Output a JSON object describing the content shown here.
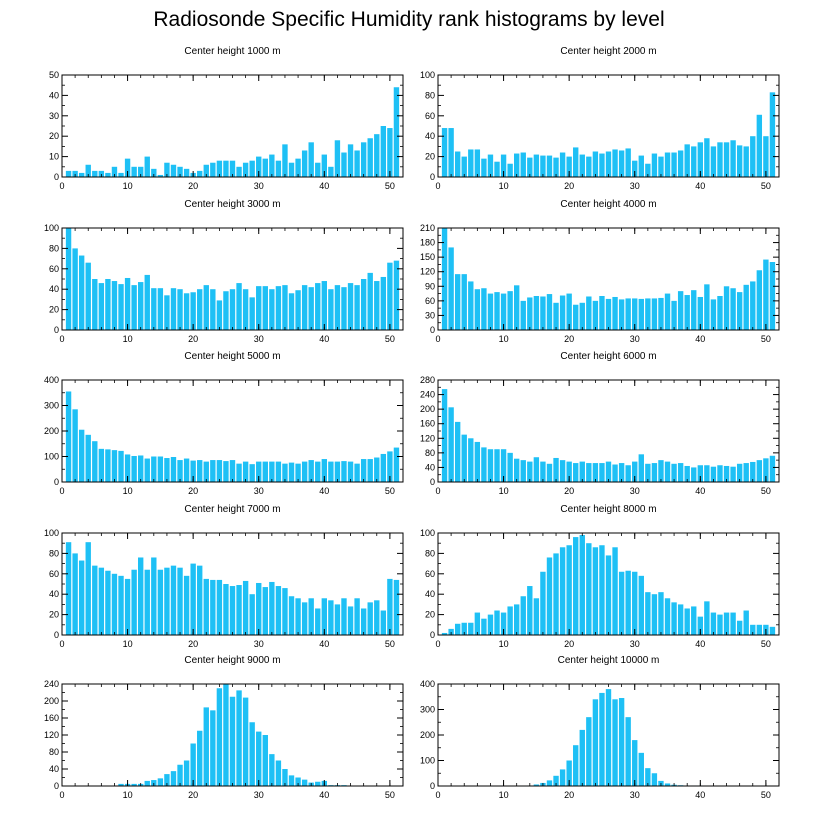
{
  "title": "Radiosonde Specific Humidity rank histograms by level",
  "colors": {
    "bar": "#1ec0f5",
    "axis": "#000000"
  },
  "chart_data": [
    {
      "type": "bar",
      "title": "Center height 1000 m",
      "xlim": [
        0,
        52
      ],
      "ylim": [
        0,
        50
      ],
      "xticks": [
        0,
        10,
        20,
        30,
        40,
        50
      ],
      "yticks": [
        0,
        10,
        20,
        30,
        40,
        50
      ],
      "x": [
        1,
        2,
        3,
        4,
        5,
        6,
        7,
        8,
        9,
        10,
        11,
        12,
        13,
        14,
        15,
        16,
        17,
        18,
        19,
        20,
        21,
        22,
        23,
        24,
        25,
        26,
        27,
        28,
        29,
        30,
        31,
        32,
        33,
        34,
        35,
        36,
        37,
        38,
        39,
        40,
        41,
        42,
        43,
        44,
        45,
        46,
        47,
        48,
        49,
        50,
        51
      ],
      "values": [
        3,
        3,
        2,
        6,
        3,
        3,
        2,
        5,
        2,
        9,
        5,
        5,
        10,
        4,
        1,
        7,
        6,
        5,
        4,
        2,
        3,
        6,
        7,
        8,
        8,
        8,
        5,
        7,
        8,
        10,
        9,
        11,
        8,
        16,
        7,
        9,
        13,
        17,
        7,
        11,
        5,
        18,
        12,
        16,
        13,
        17,
        19,
        21,
        25,
        24,
        44
      ]
    },
    {
      "type": "bar",
      "title": "Center height 2000 m",
      "xlim": [
        0,
        52
      ],
      "ylim": [
        0,
        100
      ],
      "xticks": [
        0,
        10,
        20,
        30,
        40,
        50
      ],
      "yticks": [
        0,
        20,
        40,
        60,
        80,
        100
      ],
      "x": [
        1,
        2,
        3,
        4,
        5,
        6,
        7,
        8,
        9,
        10,
        11,
        12,
        13,
        14,
        15,
        16,
        17,
        18,
        19,
        20,
        21,
        22,
        23,
        24,
        25,
        26,
        27,
        28,
        29,
        30,
        31,
        32,
        33,
        34,
        35,
        36,
        37,
        38,
        39,
        40,
        41,
        42,
        43,
        44,
        45,
        46,
        47,
        48,
        49,
        50,
        51
      ],
      "values": [
        48,
        48,
        25,
        20,
        27,
        27,
        18,
        22,
        15,
        22,
        13,
        23,
        24,
        19,
        22,
        21,
        21,
        19,
        24,
        20,
        29,
        22,
        20,
        25,
        23,
        25,
        27,
        26,
        28,
        16,
        21,
        13,
        23,
        20,
        24,
        24,
        26,
        32,
        30,
        34,
        38,
        30,
        34,
        34,
        36,
        31,
        30,
        40,
        61,
        40,
        83
      ]
    },
    {
      "type": "bar",
      "title": "Center height 3000 m",
      "xlim": [
        0,
        52
      ],
      "ylim": [
        0,
        100
      ],
      "xticks": [
        0,
        10,
        20,
        30,
        40,
        50
      ],
      "yticks": [
        0,
        20,
        40,
        60,
        80,
        100
      ],
      "x": [
        1,
        2,
        3,
        4,
        5,
        6,
        7,
        8,
        9,
        10,
        11,
        12,
        13,
        14,
        15,
        16,
        17,
        18,
        19,
        20,
        21,
        22,
        23,
        24,
        25,
        26,
        27,
        28,
        29,
        30,
        31,
        32,
        33,
        34,
        35,
        36,
        37,
        38,
        39,
        40,
        41,
        42,
        43,
        44,
        45,
        46,
        47,
        48,
        49,
        50,
        51
      ],
      "values": [
        100,
        80,
        73,
        66,
        50,
        46,
        50,
        48,
        45,
        51,
        44,
        47,
        54,
        41,
        41,
        34,
        41,
        40,
        36,
        37,
        40,
        44,
        40,
        29,
        38,
        40,
        46,
        40,
        32,
        43,
        43,
        40,
        43,
        44,
        36,
        39,
        44,
        42,
        46,
        48,
        40,
        44,
        42,
        46,
        44,
        50,
        56,
        48,
        52,
        66,
        68
      ]
    },
    {
      "type": "bar",
      "title": "Center height 4000 m",
      "xlim": [
        0,
        52
      ],
      "ylim": [
        0,
        210
      ],
      "xticks": [
        0,
        10,
        20,
        30,
        40,
        50
      ],
      "yticks": [
        0,
        30,
        60,
        90,
        120,
        150,
        180,
        210
      ],
      "x": [
        1,
        2,
        3,
        4,
        5,
        6,
        7,
        8,
        9,
        10,
        11,
        12,
        13,
        14,
        15,
        16,
        17,
        18,
        19,
        20,
        21,
        22,
        23,
        24,
        25,
        26,
        27,
        28,
        29,
        30,
        31,
        32,
        33,
        34,
        35,
        36,
        37,
        38,
        39,
        40,
        41,
        42,
        43,
        44,
        45,
        46,
        47,
        48,
        49,
        50,
        51
      ],
      "values": [
        210,
        170,
        115,
        115,
        100,
        84,
        86,
        75,
        78,
        75,
        80,
        92,
        60,
        67,
        70,
        69,
        74,
        56,
        71,
        75,
        52,
        56,
        69,
        60,
        70,
        64,
        68,
        63,
        65,
        65,
        64,
        65,
        65,
        66,
        75,
        60,
        80,
        72,
        82,
        68,
        94,
        63,
        70,
        90,
        86,
        78,
        93,
        100,
        123,
        145,
        140
      ]
    },
    {
      "type": "bar",
      "title": "Center height 5000 m",
      "xlim": [
        0,
        52
      ],
      "ylim": [
        0,
        400
      ],
      "xticks": [
        0,
        10,
        20,
        30,
        40,
        50
      ],
      "yticks": [
        0,
        100,
        200,
        300,
        400
      ],
      "x": [
        1,
        2,
        3,
        4,
        5,
        6,
        7,
        8,
        9,
        10,
        11,
        12,
        13,
        14,
        15,
        16,
        17,
        18,
        19,
        20,
        21,
        22,
        23,
        24,
        25,
        26,
        27,
        28,
        29,
        30,
        31,
        32,
        33,
        34,
        35,
        36,
        37,
        38,
        39,
        40,
        41,
        42,
        43,
        44,
        45,
        46,
        47,
        48,
        49,
        50,
        51
      ],
      "values": [
        355,
        285,
        205,
        185,
        160,
        130,
        128,
        125,
        122,
        108,
        102,
        104,
        92,
        100,
        100,
        94,
        98,
        86,
        92,
        84,
        86,
        80,
        86,
        86,
        82,
        86,
        72,
        80,
        70,
        80,
        80,
        80,
        80,
        72,
        76,
        72,
        80,
        86,
        80,
        90,
        80,
        80,
        82,
        80,
        72,
        90,
        90,
        96,
        110,
        120,
        135
      ]
    },
    {
      "type": "bar",
      "title": "Center height 6000 m",
      "xlim": [
        0,
        52
      ],
      "ylim": [
        0,
        280
      ],
      "xticks": [
        0,
        10,
        20,
        30,
        40,
        50
      ],
      "yticks": [
        0,
        40,
        80,
        120,
        160,
        200,
        240,
        280
      ],
      "x": [
        1,
        2,
        3,
        4,
        5,
        6,
        7,
        8,
        9,
        10,
        11,
        12,
        13,
        14,
        15,
        16,
        17,
        18,
        19,
        20,
        21,
        22,
        23,
        24,
        25,
        26,
        27,
        28,
        29,
        30,
        31,
        32,
        33,
        34,
        35,
        36,
        37,
        38,
        39,
        40,
        41,
        42,
        43,
        44,
        45,
        46,
        47,
        48,
        49,
        50,
        51
      ],
      "values": [
        255,
        205,
        165,
        130,
        120,
        110,
        95,
        90,
        90,
        90,
        80,
        64,
        60,
        56,
        68,
        56,
        50,
        66,
        60,
        56,
        52,
        56,
        52,
        52,
        52,
        56,
        48,
        52,
        46,
        56,
        76,
        50,
        52,
        60,
        56,
        50,
        52,
        44,
        40,
        46,
        46,
        42,
        46,
        44,
        42,
        50,
        52,
        55,
        60,
        65,
        72
      ]
    },
    {
      "type": "bar",
      "title": "Center height 7000 m",
      "xlim": [
        0,
        52
      ],
      "ylim": [
        0,
        100
      ],
      "xticks": [
        0,
        10,
        20,
        30,
        40,
        50
      ],
      "yticks": [
        0,
        20,
        40,
        60,
        80,
        100
      ],
      "x": [
        1,
        2,
        3,
        4,
        5,
        6,
        7,
        8,
        9,
        10,
        11,
        12,
        13,
        14,
        15,
        16,
        17,
        18,
        19,
        20,
        21,
        22,
        23,
        24,
        25,
        26,
        27,
        28,
        29,
        30,
        31,
        32,
        33,
        34,
        35,
        36,
        37,
        38,
        39,
        40,
        41,
        42,
        43,
        44,
        45,
        46,
        47,
        48,
        49,
        50,
        51
      ],
      "values": [
        91,
        80,
        73,
        91,
        68,
        66,
        63,
        60,
        58,
        55,
        64,
        76,
        64,
        76,
        64,
        66,
        68,
        66,
        58,
        70,
        68,
        55,
        54,
        54,
        50,
        48,
        49,
        53,
        40,
        51,
        47,
        52,
        48,
        46,
        38,
        36,
        32,
        36,
        26,
        36,
        34,
        30,
        36,
        28,
        36,
        26,
        32,
        34,
        24,
        55,
        54
      ]
    },
    {
      "type": "bar",
      "title": "Center height 8000 m",
      "xlim": [
        0,
        52
      ],
      "ylim": [
        0,
        100
      ],
      "xticks": [
        0,
        10,
        20,
        30,
        40,
        50
      ],
      "yticks": [
        0,
        20,
        40,
        60,
        80,
        100
      ],
      "x": [
        1,
        2,
        3,
        4,
        5,
        6,
        7,
        8,
        9,
        10,
        11,
        12,
        13,
        14,
        15,
        16,
        17,
        18,
        19,
        20,
        21,
        22,
        23,
        24,
        25,
        26,
        27,
        28,
        29,
        30,
        31,
        32,
        33,
        34,
        35,
        36,
        37,
        38,
        39,
        40,
        41,
        42,
        43,
        44,
        45,
        46,
        47,
        48,
        49,
        50,
        51
      ],
      "values": [
        2,
        6,
        11,
        12,
        12,
        22,
        16,
        20,
        24,
        22,
        28,
        30,
        38,
        48,
        36,
        62,
        76,
        80,
        86,
        88,
        96,
        98,
        90,
        86,
        88,
        78,
        86,
        62,
        63,
        62,
        58,
        42,
        40,
        42,
        36,
        32,
        30,
        26,
        28,
        18,
        33,
        22,
        20,
        22,
        22,
        14,
        24,
        10,
        10,
        10,
        8
      ]
    },
    {
      "type": "bar",
      "title": "Center height 9000 m",
      "xlim": [
        0,
        52
      ],
      "ylim": [
        0,
        240
      ],
      "xticks": [
        0,
        10,
        20,
        30,
        40,
        50
      ],
      "yticks": [
        0,
        40,
        80,
        120,
        160,
        200,
        240
      ],
      "x": [
        1,
        2,
        3,
        4,
        5,
        6,
        7,
        8,
        9,
        10,
        11,
        12,
        13,
        14,
        15,
        16,
        17,
        18,
        19,
        20,
        21,
        22,
        23,
        24,
        25,
        26,
        27,
        28,
        29,
        30,
        31,
        32,
        33,
        34,
        35,
        36,
        37,
        38,
        39,
        40,
        41,
        42,
        43,
        44,
        45,
        46,
        47,
        48,
        49,
        50,
        51
      ],
      "values": [
        1,
        1,
        1,
        1,
        1,
        1,
        1,
        1,
        5,
        5,
        5,
        5,
        12,
        14,
        18,
        28,
        35,
        50,
        60,
        100,
        130,
        185,
        178,
        230,
        240,
        210,
        225,
        208,
        150,
        128,
        120,
        75,
        60,
        40,
        25,
        20,
        15,
        8,
        10,
        12,
        2,
        2,
        2,
        1,
        1,
        1,
        1,
        1,
        1,
        1,
        1
      ]
    },
    {
      "type": "bar",
      "title": "Center height 10000 m",
      "xlim": [
        0,
        52
      ],
      "ylim": [
        0,
        400
      ],
      "xticks": [
        0,
        10,
        20,
        30,
        40,
        50
      ],
      "yticks": [
        0,
        100,
        200,
        300,
        400
      ],
      "x": [
        1,
        2,
        3,
        4,
        5,
        6,
        7,
        8,
        9,
        10,
        11,
        12,
        13,
        14,
        15,
        16,
        17,
        18,
        19,
        20,
        21,
        22,
        23,
        24,
        25,
        26,
        27,
        28,
        29,
        30,
        31,
        32,
        33,
        34,
        35,
        36,
        37,
        38,
        39,
        40,
        41,
        42,
        43,
        44,
        45,
        46,
        47,
        48,
        49,
        50,
        51
      ],
      "values": [
        0,
        0,
        0,
        0,
        0,
        0,
        0,
        0,
        0,
        0,
        0,
        0,
        0,
        2,
        6,
        12,
        22,
        40,
        65,
        100,
        160,
        220,
        270,
        340,
        365,
        380,
        340,
        345,
        270,
        180,
        130,
        70,
        50,
        20,
        10,
        5,
        3,
        2,
        2,
        2,
        1,
        1,
        1,
        1,
        1,
        1,
        1,
        1,
        1,
        1,
        1
      ]
    }
  ]
}
